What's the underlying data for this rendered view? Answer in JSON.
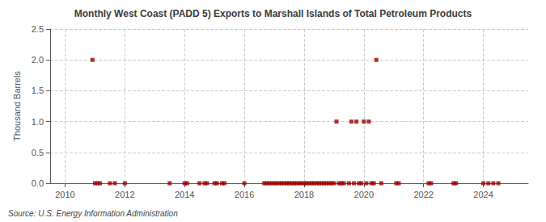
{
  "chart_data": {
    "type": "scatter",
    "title": "Monthly West Coast (PADD 5) Exports to Marshall Islands of Total Petroleum Products",
    "ylabel": "Thousand Barrels",
    "source": "Source: U.S. Energy Information Administration",
    "color": "#990000",
    "marker": "square",
    "grid": true,
    "xlim": [
      2009.5,
      2025.5
    ],
    "ylim": [
      0,
      2.5
    ],
    "xticks": [
      2010,
      2012,
      2014,
      2016,
      2018,
      2020,
      2022,
      2024
    ],
    "yticks": [
      {
        "value": 0,
        "label": "0.0"
      },
      0.5,
      {
        "value": 1,
        "label": "1.0"
      },
      1.5,
      {
        "value": 2,
        "label": "2.0"
      },
      2.5
    ],
    "x": [
      2010.917,
      2011.0,
      2011.083,
      2011.167,
      2011.5,
      2011.667,
      2012.0,
      2013.5,
      2014.0,
      2014.083,
      2014.5,
      2014.667,
      2014.75,
      2015.0,
      2015.083,
      2015.25,
      2015.333,
      2016.0,
      2016.667,
      2016.75,
      2016.833,
      2016.917,
      2017.0,
      2017.083,
      2017.167,
      2017.25,
      2017.333,
      2017.417,
      2017.5,
      2017.583,
      2017.667,
      2017.75,
      2017.833,
      2017.917,
      2018.0,
      2018.083,
      2018.167,
      2018.25,
      2018.333,
      2018.417,
      2018.5,
      2018.583,
      2018.667,
      2018.75,
      2018.833,
      2018.917,
      2019.0,
      2019.083,
      2019.167,
      2019.25,
      2019.333,
      2019.5,
      2019.583,
      2019.667,
      2019.75,
      2019.833,
      2019.917,
      2020.0,
      2020.083,
      2020.167,
      2020.25,
      2020.333,
      2020.417,
      2020.583,
      2021.083,
      2021.167,
      2022.167,
      2022.25,
      2023.0,
      2023.083,
      2024.0,
      2024.167,
      2024.333,
      2024.5
    ],
    "values": [
      2.0,
      0.0,
      0.0,
      0.0,
      0.0,
      0.0,
      0.0,
      0.0,
      0.0,
      0.0,
      0.0,
      0.0,
      0.0,
      0.0,
      0.0,
      0.0,
      0.0,
      0.0,
      0.0,
      0.0,
      0.0,
      0.0,
      0.0,
      0.0,
      0.0,
      0.0,
      0.0,
      0.0,
      0.0,
      0.0,
      0.0,
      0.0,
      0.0,
      0.0,
      0.0,
      0.0,
      0.0,
      0.0,
      0.0,
      0.0,
      0.0,
      0.0,
      0.0,
      0.0,
      0.0,
      0.0,
      0.0,
      1.0,
      0.0,
      0.0,
      0.0,
      0.0,
      1.0,
      0.0,
      1.0,
      0.0,
      0.0,
      1.0,
      0.0,
      1.0,
      0.0,
      0.0,
      2.0,
      0.0,
      0.0,
      0.0,
      0.0,
      0.0,
      0.0,
      0.0,
      0.0,
      0.0,
      0.0,
      0.0
    ]
  }
}
